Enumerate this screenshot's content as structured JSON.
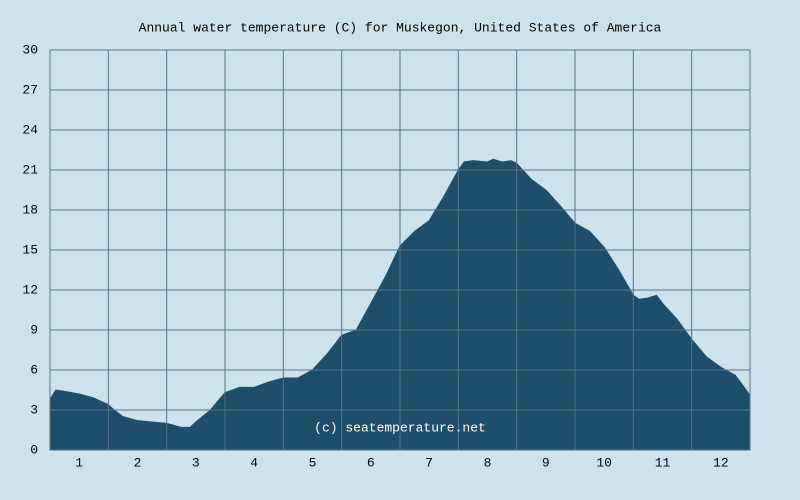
{
  "chart_data": {
    "type": "area",
    "title": "Annual water temperature (C) for Muskegon, United States of America",
    "annotation": "(c) seatemperature.net",
    "x": [
      0.5,
      0.6,
      0.75,
      1.0,
      1.25,
      1.5,
      1.6,
      1.75,
      2.0,
      2.25,
      2.5,
      2.75,
      2.9,
      3.0,
      3.25,
      3.5,
      3.75,
      4.0,
      4.25,
      4.5,
      4.75,
      5.0,
      5.25,
      5.5,
      5.75,
      6.0,
      6.25,
      6.5,
      6.75,
      7.0,
      7.25,
      7.5,
      7.6,
      7.75,
      8.0,
      8.1,
      8.25,
      8.4,
      8.5,
      8.75,
      9.0,
      9.25,
      9.5,
      9.75,
      10.0,
      10.25,
      10.5,
      10.6,
      10.75,
      10.9,
      11.0,
      11.25,
      11.5,
      11.75,
      12.0,
      12.25,
      12.5
    ],
    "series": [
      {
        "name": "Water temperature",
        "color": "#1f4e6a",
        "values": [
          3.8,
          4.5,
          4.4,
          4.2,
          3.9,
          3.4,
          3.0,
          2.5,
          2.2,
          2.1,
          2.0,
          1.7,
          1.7,
          2.1,
          3.0,
          4.3,
          4.7,
          4.7,
          5.1,
          5.4,
          5.4,
          6.0,
          7.2,
          8.6,
          9.0,
          11.0,
          13.0,
          15.3,
          16.4,
          17.2,
          19.0,
          21.0,
          21.6,
          21.7,
          21.6,
          21.8,
          21.6,
          21.7,
          21.5,
          20.3,
          19.5,
          18.3,
          17.0,
          16.4,
          15.2,
          13.5,
          11.6,
          11.3,
          11.4,
          11.6,
          11.0,
          9.8,
          8.3,
          7.0,
          6.2,
          5.6,
          4.1
        ]
      }
    ],
    "xlim": [
      0.5,
      12.5
    ],
    "xticks": [
      1,
      2,
      3,
      4,
      5,
      6,
      7,
      8,
      9,
      10,
      11,
      12
    ],
    "ylim": [
      0,
      30
    ],
    "yticks": [
      0,
      3,
      6,
      9,
      12,
      15,
      18,
      21,
      24,
      27,
      30
    ],
    "grid": true
  }
}
